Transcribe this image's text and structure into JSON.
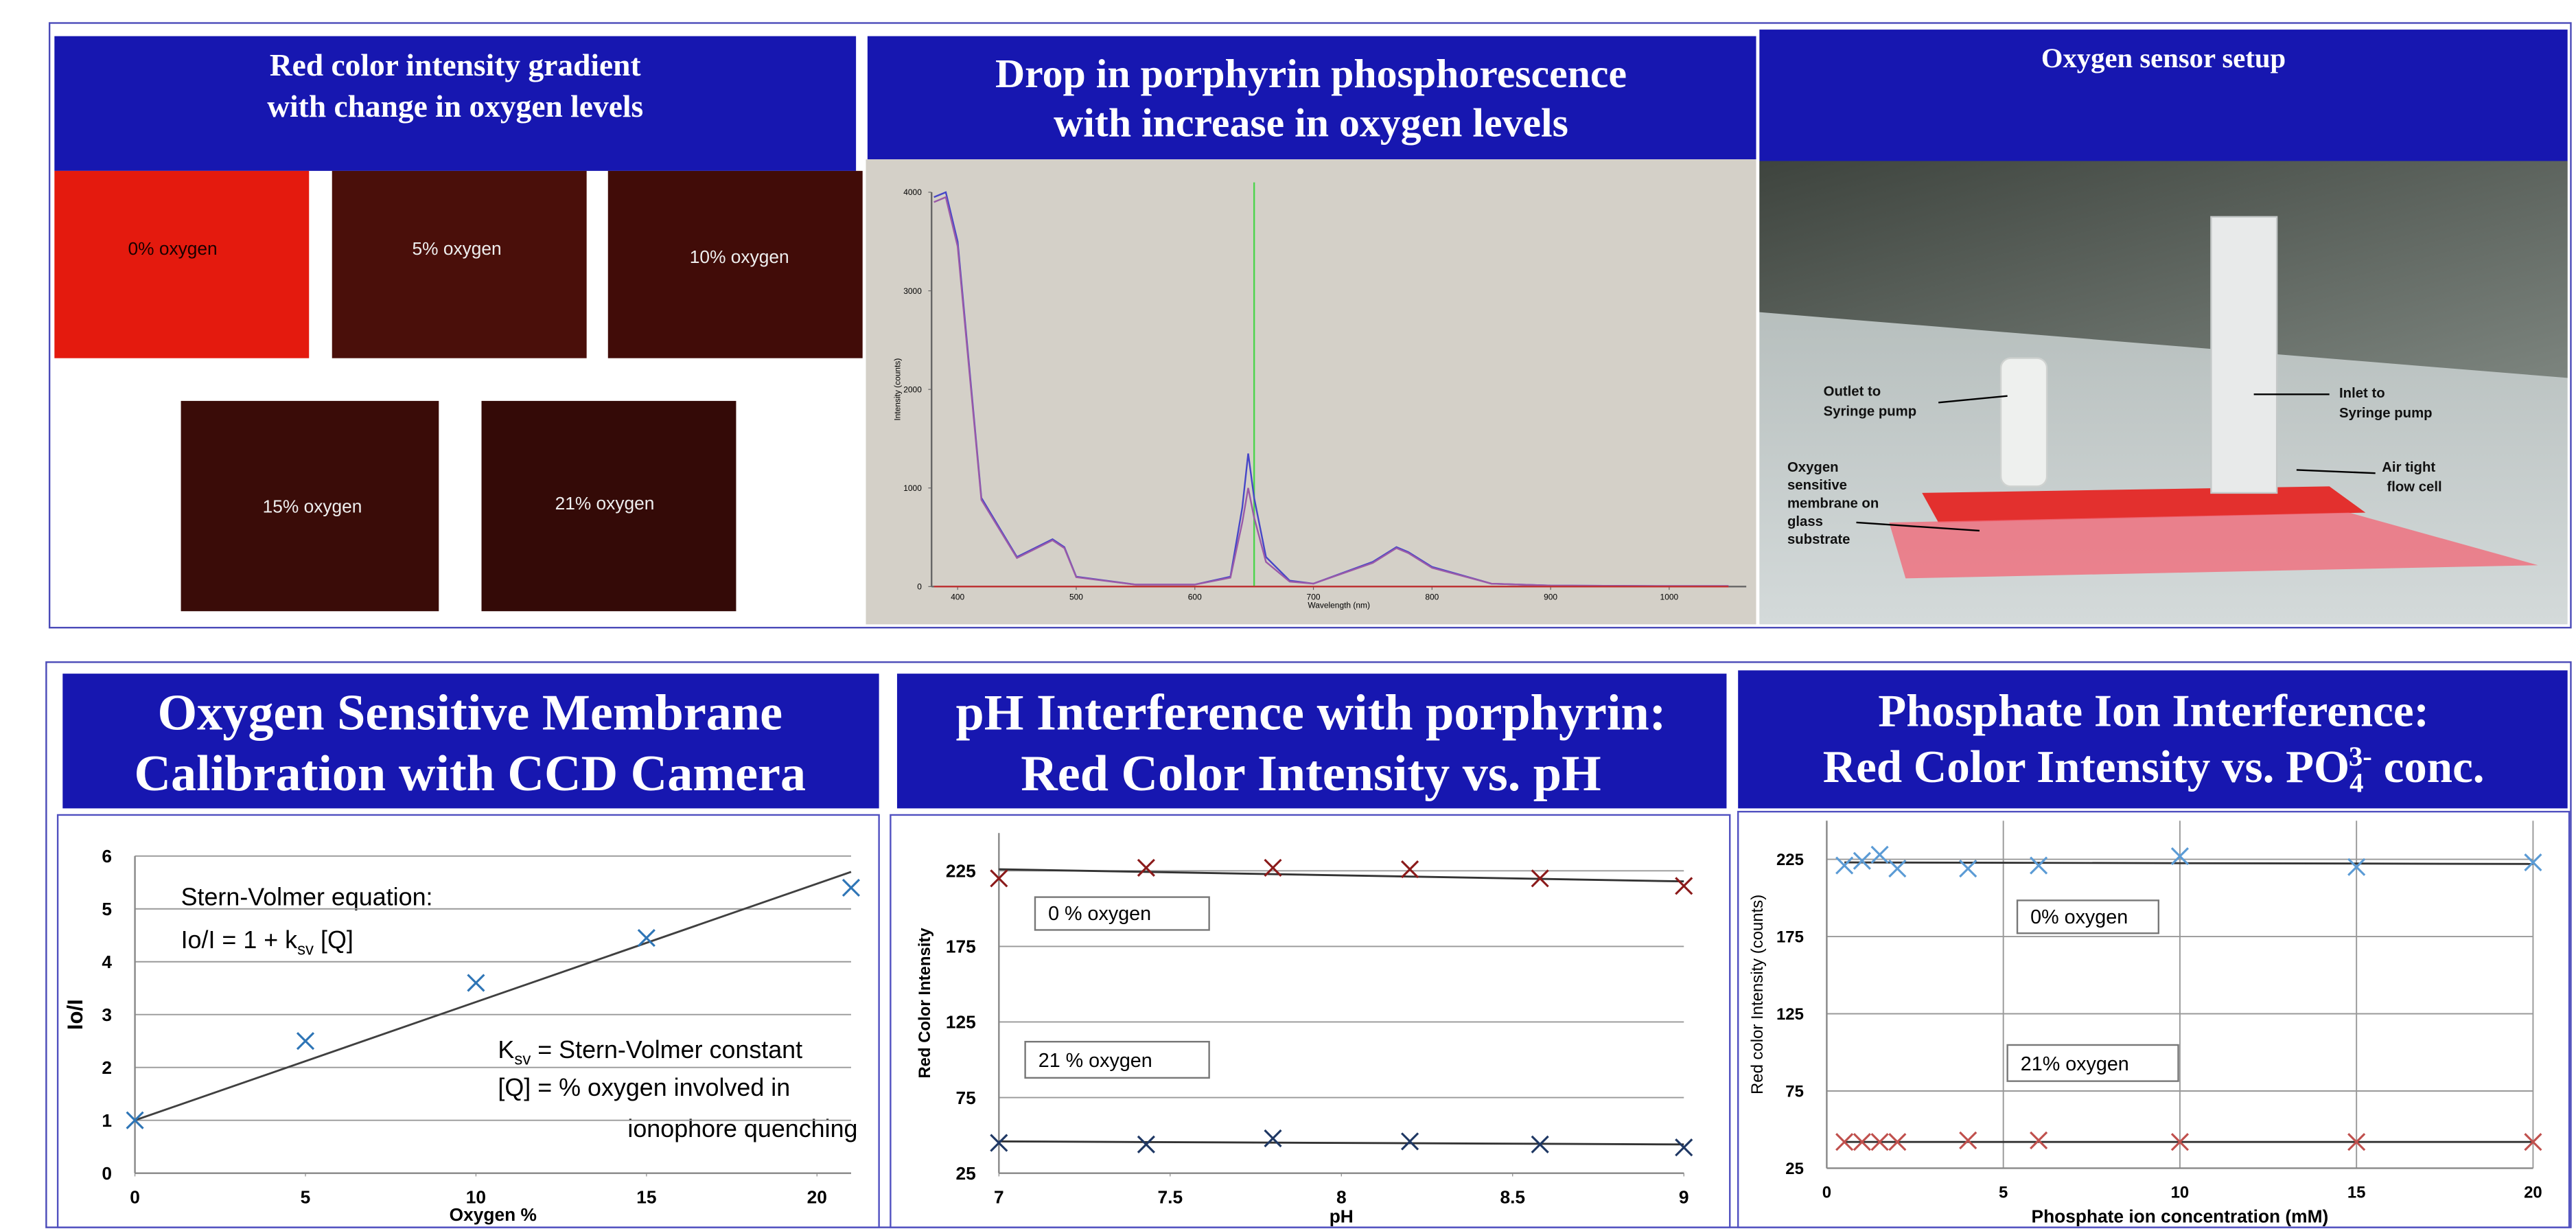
{
  "top_panels": [
    {
      "title": [
        "Red color intensity gradient",
        "with change in oxygen levels"
      ],
      "images": [
        "0% oxygen",
        "5% oxygen",
        "10% oxygen",
        "15% oxygen",
        "21% oxygen"
      ]
    },
    {
      "title": [
        "Drop in porphyrin phosphorescence",
        "with increase in oxygen levels"
      ]
    },
    {
      "title": [
        "Oxygen sensor setup"
      ],
      "labels": [
        [
          "Outlet to",
          "Syringe pump"
        ],
        [
          "Inlet to",
          "Syringe pump"
        ],
        [
          "Oxygen",
          "sensitive",
          "membrane on",
          "glass",
          "substrate"
        ],
        [
          "Air tight",
          "flow cell"
        ]
      ]
    }
  ],
  "chart_data": [
    {
      "type": "line",
      "x": [
        380,
        390,
        400,
        420,
        450,
        480,
        490,
        500,
        550,
        600,
        630,
        640,
        645,
        650,
        660,
        680,
        700,
        750,
        770,
        780,
        800,
        850,
        900,
        1000,
        1050
      ],
      "series": [
        {
          "color": "#4646c8",
          "values": [
            3950,
            4000,
            3500,
            900,
            300,
            480,
            400,
            100,
            20,
            20,
            100,
            800,
            1350,
            900,
            300,
            60,
            30,
            250,
            400,
            350,
            200,
            30,
            10,
            5,
            5
          ]
        },
        {
          "color": "#9a5aa8",
          "values": [
            3900,
            3950,
            3450,
            880,
            290,
            470,
            390,
            95,
            20,
            20,
            90,
            650,
            1000,
            700,
            250,
            50,
            30,
            240,
            390,
            340,
            190,
            30,
            10,
            5,
            5
          ]
        },
        {
          "color": "#c03030",
          "values": [
            0,
            0,
            0,
            0,
            0,
            0,
            0,
            0,
            0,
            0,
            0,
            0,
            0,
            0,
            0,
            0,
            0,
            0,
            0,
            0,
            0,
            0,
            0,
            0,
            0
          ]
        }
      ],
      "marker_line": {
        "x": 650,
        "color": "#4cd44c"
      },
      "xlim": [
        378,
        1065
      ],
      "ylim": [
        0,
        4000
      ],
      "xticks": [
        400,
        500,
        600,
        700,
        800,
        900,
        1000
      ],
      "yticks": [
        0,
        1000,
        2000,
        3000,
        4000
      ],
      "xlabel": "Wavelength (nm)",
      "ylabel": "Intensity (counts)"
    },
    {
      "type": "scatter",
      "title": [
        "Oxygen Sensitive Membrane",
        "Calibration with CCD Camera"
      ],
      "x": [
        0,
        5,
        10,
        15,
        21
      ],
      "series": [
        {
          "color": "#2e75b6",
          "values": [
            1,
            2.5,
            3.6,
            4.45,
            5.4
          ]
        }
      ],
      "fit": {
        "x": [
          0,
          21
        ],
        "values": [
          1,
          5.7
        ],
        "color": "#404040"
      },
      "xlim": [
        0,
        21
      ],
      "ylim": [
        0,
        6
      ],
      "xticks": [
        0,
        5,
        10,
        15,
        20
      ],
      "yticks": [
        0,
        1,
        2,
        3,
        4,
        5,
        6
      ],
      "grid": "y",
      "xlabel": "Oxygen %",
      "ylabel": "Io/I",
      "annotations": [
        [
          "Stern-Volmer equation:"
        ],
        [
          "Io/I = 1 + k",
          "sv",
          " [Q]"
        ],
        [
          "K",
          "sv",
          " = Stern-Volmer constant"
        ],
        [
          "[Q] = % oxygen involved in"
        ],
        [
          "ionophore quenching"
        ]
      ]
    },
    {
      "type": "scatter",
      "title": [
        "pH Interference with porphyrin:",
        "Red Color Intensity vs. pH"
      ],
      "x": [
        7,
        7.43,
        7.8,
        8.2,
        8.58,
        9
      ],
      "series": [
        {
          "label": "0 % oxygen",
          "color": "#8b1a1a",
          "values": [
            220,
            227,
            227,
            226,
            220,
            215
          ],
          "fit": {
            "x": [
              7,
              9
            ],
            "values": [
              226,
              218
            ]
          }
        },
        {
          "label": "21 % oxygen",
          "color": "#1f3864",
          "values": [
            45,
            44,
            48,
            46,
            44,
            42
          ],
          "fit": {
            "x": [
              7,
              9
            ],
            "values": [
              46,
              44
            ]
          }
        }
      ],
      "xlim": [
        7,
        9
      ],
      "ylim": [
        25,
        250
      ],
      "xticks": [
        7,
        7.5,
        8,
        8.5,
        9
      ],
      "yticks": [
        25,
        75,
        125,
        175,
        225
      ],
      "grid": "y",
      "xlabel": "pH",
      "ylabel": "Red Color Intensity"
    },
    {
      "type": "scatter",
      "title": [
        "Phosphate Ion Interference:",
        [
          "Red Color Intensity vs. PO",
          "4",
          "3-",
          " conc."
        ]
      ],
      "x": [
        0.5,
        1,
        1.5,
        2,
        4,
        6,
        10,
        15,
        20
      ],
      "series": [
        {
          "label": "0% oxygen",
          "color": "#5b9bd5",
          "values": [
            221,
            224,
            228,
            219,
            219,
            221,
            227,
            220,
            223
          ],
          "fit": {
            "x": [
              0.5,
              20
            ],
            "values": [
              223,
              222
            ]
          }
        },
        {
          "label": "21% oxygen",
          "color": "#c0504d",
          "values": [
            42,
            42,
            42,
            42,
            43,
            43,
            42,
            42,
            42
          ],
          "fit": {
            "x": [
              0.5,
              20
            ],
            "values": [
              42,
              42
            ]
          }
        }
      ],
      "xlim": [
        0,
        20
      ],
      "ylim": [
        25,
        250
      ],
      "xticks": [
        0,
        5,
        10,
        15,
        20
      ],
      "yticks": [
        25,
        75,
        125,
        175,
        225
      ],
      "grid": "both",
      "xlabel": "Phosphate ion concentration (mM)",
      "ylabel": "Red color Intensity (counts)"
    }
  ]
}
